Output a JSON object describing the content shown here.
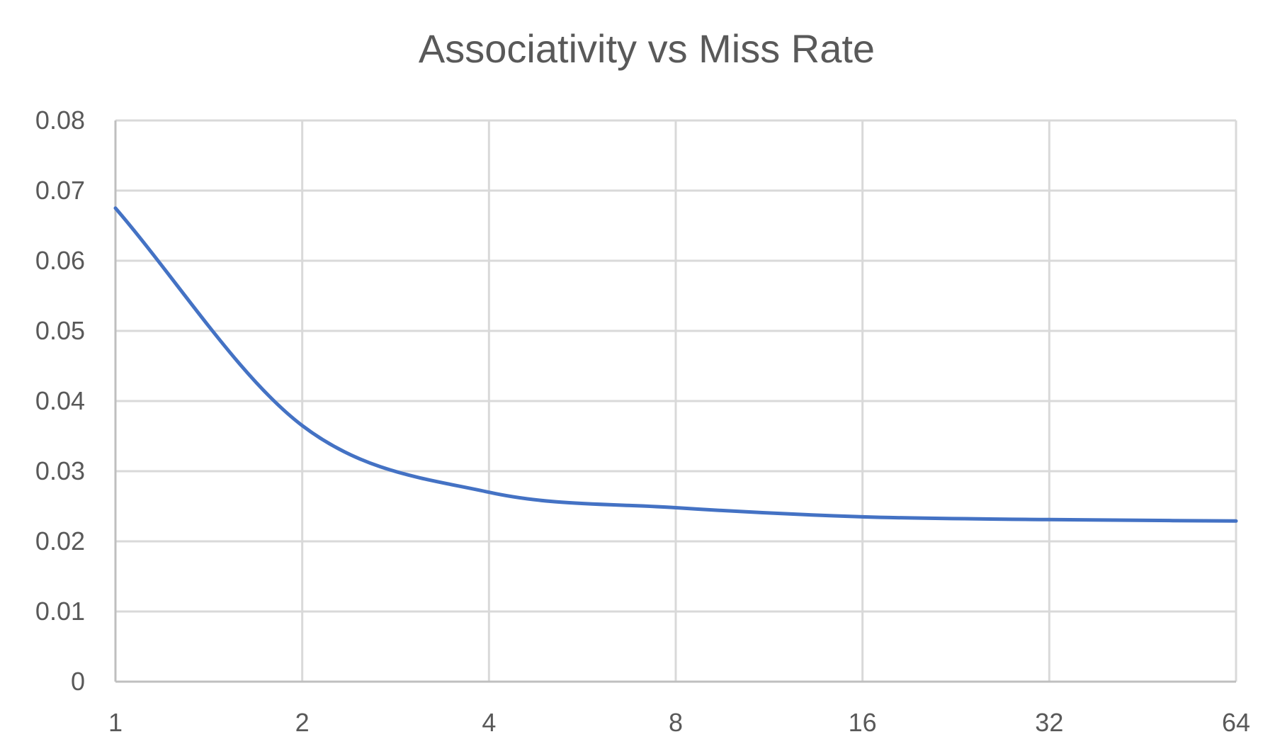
{
  "chart_data": {
    "type": "line",
    "title": "Associativity vs Miss Rate",
    "xlabel": "",
    "ylabel": "",
    "categories": [
      "1",
      "2",
      "4",
      "8",
      "16",
      "32",
      "64"
    ],
    "series": [
      {
        "values": [
          0.0675,
          0.0365,
          0.027,
          0.0248,
          0.0235,
          0.0231,
          0.0229
        ]
      }
    ],
    "ylim": [
      0,
      0.08
    ],
    "y_ticks": [
      "0",
      "0.01",
      "0.02",
      "0.03",
      "0.04",
      "0.05",
      "0.06",
      "0.07",
      "0.08"
    ],
    "grid": true,
    "smooth": true,
    "legend": "none",
    "colors": {
      "series": "#4472c4",
      "grid": "#d9d9d9",
      "text": "#595959"
    }
  }
}
